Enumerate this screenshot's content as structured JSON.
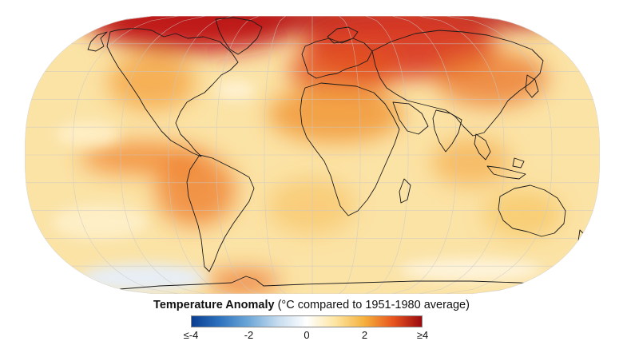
{
  "map": {
    "projection": "robinson",
    "graticule": true,
    "colors": {
      "ocean_base": "#fbe3a6",
      "cool": "#ffffff",
      "hot": "#9b0a10",
      "coastline": "#1a1a1a",
      "graticule": "#c8c8c8"
    },
    "hotspots": [
      "arctic-greenland-canada",
      "siberia-northern-asia",
      "europe-eastern",
      "north-africa-middle-east",
      "central-north-america",
      "south-america-amazon",
      "antarctic-peninsula"
    ],
    "coolspots": [
      "southern-ocean-west",
      "north-atlantic-south-of-greenland",
      "equatorial-pacific"
    ]
  },
  "legend": {
    "title_bold": "Temperature Anomaly",
    "title_rest": " (°C compared to 1951-1980 average)",
    "stops": [
      {
        "value": -4,
        "color": "#0a3d91"
      },
      {
        "value": -3,
        "color": "#2f74c0"
      },
      {
        "value": -2,
        "color": "#6fa8d8"
      },
      {
        "value": -1,
        "color": "#c6dcef"
      },
      {
        "value": 0,
        "color": "#ffffff"
      },
      {
        "value": 1,
        "color": "#fde5a0"
      },
      {
        "value": 2,
        "color": "#f5b13d"
      },
      {
        "value": 3,
        "color": "#e8551e"
      },
      {
        "value": 4,
        "color": "#9b0a10"
      }
    ],
    "ticks": [
      {
        "value": -4,
        "label": "≤-4"
      },
      {
        "value": -2,
        "label": "-2"
      },
      {
        "value": 0,
        "label": "0"
      },
      {
        "value": 2,
        "label": "2"
      },
      {
        "value": 4,
        "label": "≥4"
      }
    ]
  }
}
